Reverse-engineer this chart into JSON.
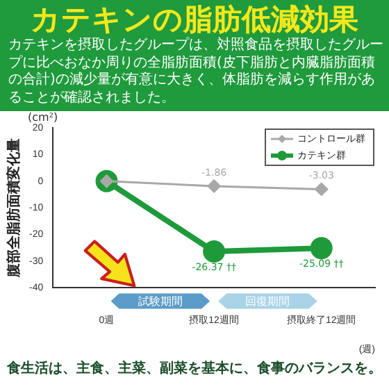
{
  "chart_data": {
    "type": "line",
    "title": "カテキンの脂肪低減効果",
    "subtitle": "カテキンを摂取したグループは、対照食品を摂取したグループに比べおなか周りの全脂肪面積(皮下脂肪と内臓脂肪面積の合計)の減少量が有意に大きく、体脂肪を減らす作用があることが確認されました。",
    "xlabel": "(週)",
    "ylabel": "腹部全脂肪面積変化量",
    "categories": [
      "0週",
      "摂取12週間",
      "摂取終了12週間"
    ],
    "ylim": [
      -40,
      20
    ],
    "yticks": [
      -40,
      -30,
      -20,
      -10,
      0,
      10,
      20
    ],
    "series": [
      {
        "name": "コントロール群",
        "color": "#a8a8a8",
        "values": [
          0,
          -1.86,
          -3.03
        ],
        "value_labels": [
          null,
          "-1.86",
          "-3.03"
        ],
        "marker": "diamond"
      },
      {
        "name": "カテキン群",
        "color": "#1e9a3a",
        "values": [
          0,
          -26.37,
          -25.09
        ],
        "value_labels": [
          null,
          "-26.37 ††",
          "-25.09 ††"
        ],
        "marker": "circle"
      }
    ],
    "legend": "top right",
    "grid": false,
    "annotations": [
      "(cm²)",
      "食生活は、主食、主菜、副菜を基本に、食事のバランスを。",
      "試験期間",
      "回復期間"
    ]
  }
}
